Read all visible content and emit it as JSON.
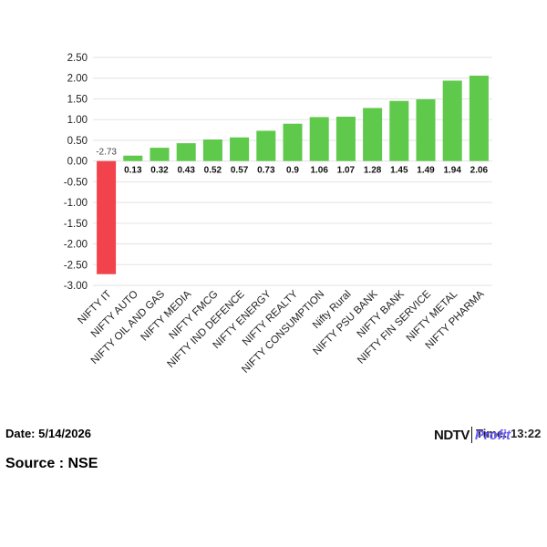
{
  "chart_data": {
    "type": "bar",
    "categories": [
      "NIFTY IT",
      "NIFTY AUTO",
      "NIFTY OIL AND GAS",
      "NIFTY MEDIA",
      "NIFTY FMCG",
      "NIFTY IND DEFENCE",
      "NIFTY ENERGY",
      "NIFTY REALTY",
      "NIFTY CONSUMPTION",
      "Nifty Rural",
      "NIFTY PSU BANK",
      "NIFTY BANK",
      "NIFTY FIN SERVICE",
      "NIFTY METAL",
      "NIFTY PHARMA"
    ],
    "values": [
      -2.73,
      0.13,
      0.32,
      0.43,
      0.52,
      0.57,
      0.73,
      0.9,
      1.06,
      1.07,
      1.28,
      1.45,
      1.49,
      1.94,
      2.06
    ],
    "value_labels": [
      "-2.73",
      "0.13",
      "0.32",
      "0.43",
      "0.52",
      "0.57",
      "0.73",
      "0.9",
      "1.06",
      "1.07",
      "1.28",
      "1.45",
      "1.49",
      "1.94",
      "2.06"
    ],
    "yticks": [
      "-3.00",
      "-2.50",
      "-2.00",
      "-1.50",
      "-1.00",
      "-0.50",
      "0.00",
      "0.50",
      "1.00",
      "1.50",
      "2.00",
      "2.50"
    ],
    "ylim": [
      -3,
      2.5
    ],
    "grid": true,
    "colors": {
      "positive": "#5ec94a",
      "negative": "#f2434d",
      "grid": "#e3e3e3"
    }
  },
  "footer": {
    "date": "Date: 5/14/2026",
    "time": "Time: 13:22",
    "logo_ndtv": "NDTV",
    "logo_profit": "Profit",
    "source": "Source : NSE"
  }
}
